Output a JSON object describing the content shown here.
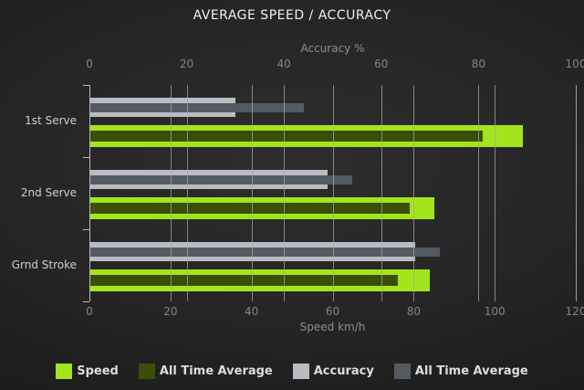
{
  "title": "AVERAGE SPEED / ACCURACY",
  "chart_data": {
    "type": "bar",
    "orientation": "horizontal",
    "grid": true,
    "legend_position": "bottom",
    "categories": [
      "1st Serve",
      "2nd Serve",
      "Grnd Stroke"
    ],
    "axes": {
      "top": {
        "title": "Accuracy %",
        "min": 0,
        "max": 100,
        "ticks": [
          0,
          20,
          40,
          60,
          80,
          100
        ]
      },
      "bottom": {
        "title": "Speed km/h",
        "min": 0,
        "max": 120,
        "ticks": [
          0,
          20,
          40,
          60,
          80,
          100,
          120
        ]
      }
    },
    "series": [
      {
        "name": "Speed",
        "axis": "bottom",
        "row": "speed",
        "style": "main",
        "color": "#a3e51c",
        "values": [
          107,
          85,
          84
        ]
      },
      {
        "name": "All Time Average",
        "axis": "bottom",
        "row": "speed",
        "style": "overlay",
        "color": "#3c4f08",
        "values": [
          97,
          79,
          76
        ]
      },
      {
        "name": "Accuracy",
        "axis": "top",
        "row": "accuracy",
        "style": "main",
        "color": "#b9bdc3",
        "values": [
          30,
          49,
          67
        ]
      },
      {
        "name": "All Time Average",
        "axis": "top",
        "row": "accuracy",
        "style": "overlay",
        "color": "#535a62",
        "values": [
          44,
          54,
          72
        ]
      }
    ],
    "legend": [
      {
        "label": "Speed",
        "color": "#a3e51c"
      },
      {
        "label": "All Time Average",
        "color": "#3c4f08"
      },
      {
        "label": "Accuracy",
        "color": "#b9bdc3"
      },
      {
        "label": "All Time Average",
        "color": "#535a62"
      }
    ]
  },
  "colors": {
    "background": "#242424",
    "title_text": "#f0f0f0",
    "axis_text": "#8d8d8d",
    "category_text": "#cfcfcf",
    "gridline": "#a5a5a5",
    "axis_line": "#b8b8b8",
    "legend_text": "#dcdcdc"
  }
}
